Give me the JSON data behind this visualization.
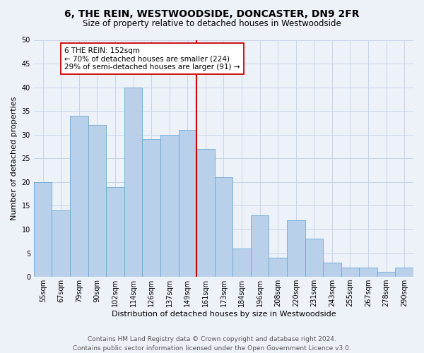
{
  "title": "6, THE REIN, WESTWOODSIDE, DONCASTER, DN9 2FR",
  "subtitle": "Size of property relative to detached houses in Westwoodside",
  "xlabel": "Distribution of detached houses by size in Westwoodside",
  "ylabel": "Number of detached properties",
  "categories": [
    "55sqm",
    "67sqm",
    "79sqm",
    "90sqm",
    "102sqm",
    "114sqm",
    "126sqm",
    "137sqm",
    "149sqm",
    "161sqm",
    "173sqm",
    "184sqm",
    "196sqm",
    "208sqm",
    "220sqm",
    "231sqm",
    "243sqm",
    "255sqm",
    "267sqm",
    "278sqm",
    "290sqm"
  ],
  "values": [
    20,
    14,
    34,
    32,
    19,
    40,
    29,
    30,
    31,
    27,
    21,
    6,
    13,
    4,
    12,
    8,
    3,
    2,
    2,
    1,
    2
  ],
  "bar_color": "#b8d0ea",
  "bar_edge_color": "#6aaad4",
  "bar_edge_width": 0.6,
  "vline_color": "#cc0000",
  "vline_x_index": 8,
  "annotation_text": "6 THE REIN: 152sqm\n← 70% of detached houses are smaller (224)\n29% of semi-detached houses are larger (91) →",
  "annotation_box_color": "#ffffff",
  "annotation_box_edge": "#cc0000",
  "ylim": [
    0,
    50
  ],
  "yticks": [
    0,
    5,
    10,
    15,
    20,
    25,
    30,
    35,
    40,
    45,
    50
  ],
  "background_color": "#edf2f9",
  "grid_color": "#c8d4e8",
  "footer_line1": "Contains HM Land Registry data © Crown copyright and database right 2024.",
  "footer_line2": "Contains public sector information licensed under the Open Government Licence v3.0.",
  "title_fontsize": 10,
  "subtitle_fontsize": 8.5,
  "xlabel_fontsize": 8,
  "ylabel_fontsize": 8,
  "tick_fontsize": 7,
  "footer_fontsize": 6.5,
  "annotation_fontsize": 7.5
}
